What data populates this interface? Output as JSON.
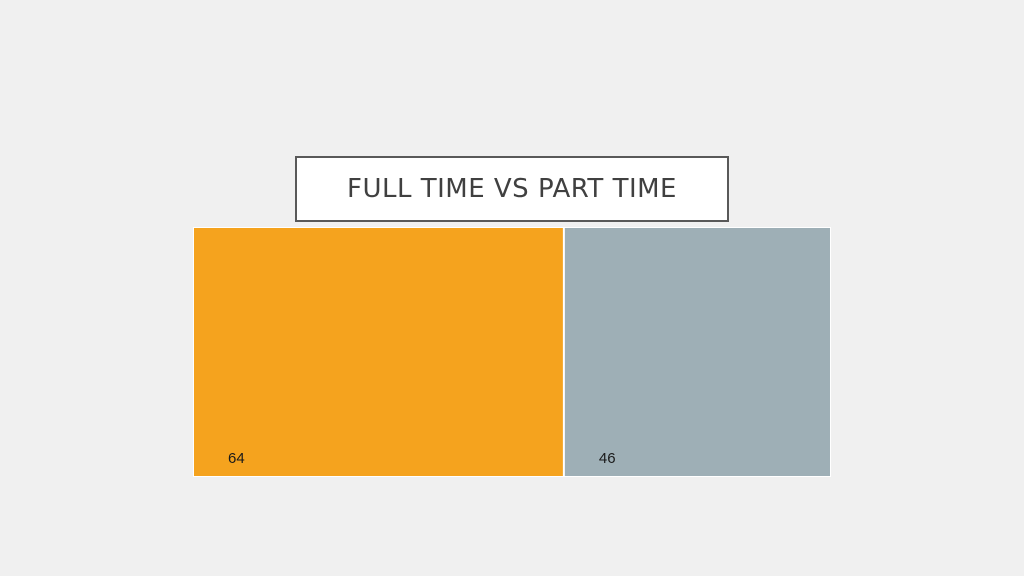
{
  "slide": {
    "title": "FULL TIME VS PART TIME"
  },
  "chart_data": {
    "type": "treemap",
    "title": "",
    "categories": [
      "",
      ""
    ],
    "values": [
      64,
      46
    ],
    "data_labels": [
      "64",
      "46"
    ],
    "colors": [
      "#f5a31e",
      "#9eafb6"
    ],
    "border_color": "#ffffff"
  }
}
